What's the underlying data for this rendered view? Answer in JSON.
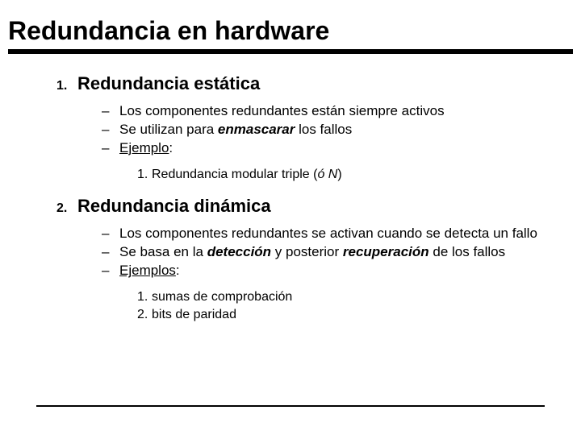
{
  "title": "Redundancia en hardware",
  "sections": [
    {
      "num": "1.",
      "title": "Redundancia estática",
      "bullets": [
        {
          "html": "Los componentes redundantes están siempre activos"
        },
        {
          "html": "Se utilizan para <em class='ital'>enmascarar</em> los fallos"
        },
        {
          "html": "<span class='underline'>Ejemplo</span>:"
        }
      ],
      "subnum": [
        {
          "n": "1.",
          "html": "Redundancia modular triple (<i>ó N</i>)"
        }
      ]
    },
    {
      "num": "2.",
      "title": "Redundancia dinámica",
      "bullets": [
        {
          "html": "Los componentes redundantes se activan cuando se detecta un fallo"
        },
        {
          "html": "Se basa en la <em class='ital'>detección</em> y posterior <em class='ital'>recuperación</em> de los fallos"
        },
        {
          "html": "<span class='underline'>Ejemplos</span>:"
        }
      ],
      "subnum": [
        {
          "n": "1.",
          "html": "sumas de comprobación"
        },
        {
          "n": "2.",
          "html": "bits de paridad"
        }
      ]
    }
  ]
}
